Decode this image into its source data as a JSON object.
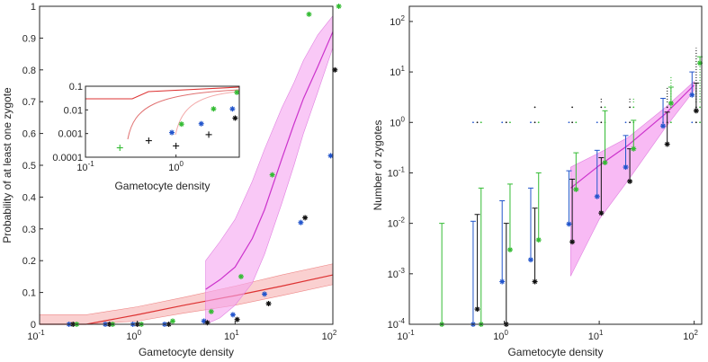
{
  "chart_data": [
    {
      "type": "scatter",
      "panel": "left",
      "xscale": "log",
      "xlim": [
        0.1,
        100
      ],
      "ylim": [
        0,
        1
      ],
      "xlabel": "Gametocyte density",
      "ylabel": "Probability of at least one zygote",
      "x_ticks": [
        {
          "value": 0.1,
          "base": "10",
          "exp": "-1"
        },
        {
          "value": 1,
          "base": "10",
          "exp": "0"
        },
        {
          "value": 10,
          "base": "10",
          "exp": "1"
        },
        {
          "value": 100,
          "base": "10",
          "exp": "2"
        }
      ],
      "y_ticks": [
        {
          "value": 0,
          "label": "0"
        },
        {
          "value": 0.1,
          "label": "0.1"
        },
        {
          "value": 0.2,
          "label": "0.2"
        },
        {
          "value": 0.3,
          "label": "0.3"
        },
        {
          "value": 0.4,
          "label": "0.4"
        },
        {
          "value": 0.5,
          "label": "0.5"
        },
        {
          "value": 0.6,
          "label": "0.6"
        },
        {
          "value": 0.7,
          "label": "0.7"
        },
        {
          "value": 0.8,
          "label": "0.8"
        },
        {
          "value": 0.9,
          "label": "0.9"
        },
        {
          "value": 1,
          "label": "1"
        }
      ],
      "colors": {
        "magenta": "#cc33cc",
        "magenta_band": "#f5a3f0",
        "red": "#dd3333",
        "red_band": "#f7b0b0",
        "blue": "#2255cc",
        "green": "#33bb33",
        "black": "#111111"
      },
      "series": [
        {
          "name": "blue",
          "marker": "*",
          "x": [
            0.2,
            0.47,
            0.9,
            1.9,
            4.8,
            9.5,
            20,
            47,
            95
          ],
          "y": [
            0,
            0,
            0,
            0,
            0.01,
            0.03,
            0.095,
            0.32,
            0.53
          ]
        },
        {
          "name": "black",
          "marker": "*",
          "x": [
            0.22,
            0.52,
            1.0,
            2.1,
            5.2,
            10.5,
            22,
            52,
            105
          ],
          "y": [
            0,
            0,
            0,
            0,
            0.005,
            0.015,
            0.065,
            0.335,
            0.8
          ]
        },
        {
          "name": "green",
          "marker": "*",
          "x": [
            0.24,
            0.56,
            1.1,
            2.3,
            5.7,
            11.5,
            24,
            57,
            115
          ],
          "y": [
            0,
            0,
            0,
            0.01,
            0.04,
            0.15,
            0.47,
            0.975,
            1.0
          ]
        }
      ],
      "fits": [
        {
          "name": "magenta fit",
          "x": [
            5,
            7,
            10,
            15,
            20,
            30,
            40,
            50,
            70,
            100
          ],
          "y": [
            0.11,
            0.14,
            0.18,
            0.27,
            0.36,
            0.52,
            0.63,
            0.71,
            0.81,
            0.92
          ],
          "lower": [
            0.0,
            0.02,
            0.06,
            0.13,
            0.22,
            0.38,
            0.5,
            0.6,
            0.73,
            0.87
          ],
          "upper": [
            0.2,
            0.26,
            0.33,
            0.45,
            0.55,
            0.68,
            0.76,
            0.83,
            0.91,
            0.97
          ]
        },
        {
          "name": "red fit",
          "x": [
            0.1,
            0.3,
            1,
            3,
            10,
            30,
            100
          ],
          "y": [
            0.0,
            0.0,
            0.03,
            0.06,
            0.09,
            0.12,
            0.155
          ],
          "lower": [
            0.0,
            0.0,
            0.01,
            0.035,
            0.06,
            0.09,
            0.125
          ],
          "upper": [
            0.03,
            0.03,
            0.055,
            0.085,
            0.12,
            0.155,
            0.19
          ]
        }
      ]
    },
    {
      "type": "scatter",
      "panel": "inset",
      "xscale": "log",
      "yscale": "log",
      "xlim": [
        0.1,
        5
      ],
      "ylim": [
        0.0001,
        0.1
      ],
      "xlabel": "Gametocyte density",
      "x_ticks": [
        {
          "value": 0.1,
          "base": "10",
          "exp": "-1"
        },
        {
          "value": 1,
          "base": "10",
          "exp": "0"
        }
      ],
      "y_ticks": [
        {
          "value": 0.0001,
          "label": "0.0001"
        },
        {
          "value": 0.001,
          "label": "0.001"
        },
        {
          "value": 0.01,
          "label": "0.01"
        },
        {
          "value": 0.1,
          "label": "0.1"
        }
      ],
      "series": [
        {
          "name": "green",
          "marker": "+",
          "x": [
            0.24
          ],
          "y": [
            0.00025
          ]
        },
        {
          "name": "black",
          "marker": "+",
          "x": [
            0.5,
            1.0,
            2.3
          ],
          "y": [
            0.0005,
            0.0003,
            0.0009
          ]
        },
        {
          "name": "blue",
          "marker": "*",
          "x": [
            0.9,
            1.9,
            4.2
          ],
          "y": [
            0.0011,
            0.0026,
            0.011
          ]
        },
        {
          "name": "green",
          "marker": "*",
          "x": [
            1.15,
            2.6,
            4.7
          ],
          "y": [
            0.0025,
            0.011,
            0.055
          ]
        },
        {
          "name": "black",
          "marker": "*",
          "x": [
            4.5
          ],
          "y": [
            0.0045
          ]
        }
      ]
    },
    {
      "type": "scatter",
      "panel": "right",
      "xscale": "log",
      "yscale": "log",
      "xlim": [
        0.1,
        120
      ],
      "ylim": [
        0.0001,
        200
      ],
      "xlabel": "Gametocyte density",
      "ylabel": "Number of zygotes",
      "x_ticks": [
        {
          "value": 0.1,
          "base": "10",
          "exp": "-1"
        },
        {
          "value": 1,
          "base": "10",
          "exp": "0"
        },
        {
          "value": 10,
          "base": "10",
          "exp": "1"
        },
        {
          "value": 100,
          "base": "10",
          "exp": "2"
        }
      ],
      "y_ticks": [
        {
          "value": 0.0001,
          "base": "10",
          "exp": "-4"
        },
        {
          "value": 0.001,
          "base": "10",
          "exp": "-3"
        },
        {
          "value": 0.01,
          "base": "10",
          "exp": "-2"
        },
        {
          "value": 0.1,
          "base": "10",
          "exp": "-1"
        },
        {
          "value": 1,
          "base": "10",
          "exp": "0"
        },
        {
          "value": 10,
          "base": "10",
          "exp": "1"
        },
        {
          "value": 100,
          "base": "10",
          "exp": "2"
        }
      ],
      "series": [
        {
          "name": "blue",
          "x": [
            0.47,
            0.95,
            1.9,
            4.8,
            9.5,
            19,
            47,
            95
          ],
          "mean": [
            0.0001,
            0.0007,
            0.0019,
            0.0097,
            0.034,
            0.13,
            0.85,
            3.5
          ],
          "upper": [
            0.011,
            0.028,
            0.05,
            0.11,
            0.28,
            0.55,
            3.0,
            10
          ]
        },
        {
          "name": "black",
          "x": [
            0.52,
            1.05,
            2.1,
            5.2,
            10.5,
            21,
            52,
            105
          ],
          "mean": [
            0.0002,
            0.0001,
            0.0007,
            0.0043,
            0.016,
            0.068,
            0.37,
            1.7
          ],
          "upper": [
            0.015,
            0.01,
            0.02,
            0.075,
            0.2,
            0.3,
            1.6,
            6
          ]
        },
        {
          "name": "green",
          "x": [
            0.22,
            0.57,
            1.15,
            2.3,
            5.7,
            11.5,
            23,
            57,
            115
          ],
          "mean": [
            0.0001,
            0.0001,
            0.003,
            0.0047,
            0.047,
            0.16,
            0.3,
            2.4,
            15
          ],
          "upper": [
            0.01,
            0.05,
            0.06,
            0.1,
            0.25,
            1.7,
            1.1,
            5,
            20
          ]
        }
      ],
      "fit": {
        "name": "magenta fit",
        "x": [
          5,
          10,
          20,
          50,
          100
        ],
        "y": [
          0.05,
          0.14,
          0.35,
          1.5,
          5.5
        ],
        "lower": [
          0.0009,
          0.012,
          0.07,
          0.8,
          4.3
        ],
        "upper": [
          0.13,
          0.25,
          0.5,
          2.0,
          6.5
        ]
      },
      "dots": [
        {
          "name": "blue",
          "x": [
            0.47,
            0.95,
            1.9,
            4.8,
            9.5,
            19,
            47,
            95
          ],
          "y": [
            1,
            1,
            1,
            1,
            1,
            1,
            1,
            1
          ]
        },
        {
          "name": "black",
          "x": [
            0.52,
            1.05,
            2.1,
            5.2,
            10.5,
            21,
            52,
            105
          ],
          "y": [
            1,
            1,
            2,
            2,
            3,
            3,
            5,
            30
          ]
        },
        {
          "name": "green",
          "x": [
            0.57,
            1.15,
            2.3,
            5.7,
            11.5,
            23,
            57,
            115
          ],
          "y": [
            1,
            1,
            1,
            1,
            2,
            3,
            8,
            15
          ]
        }
      ]
    }
  ]
}
